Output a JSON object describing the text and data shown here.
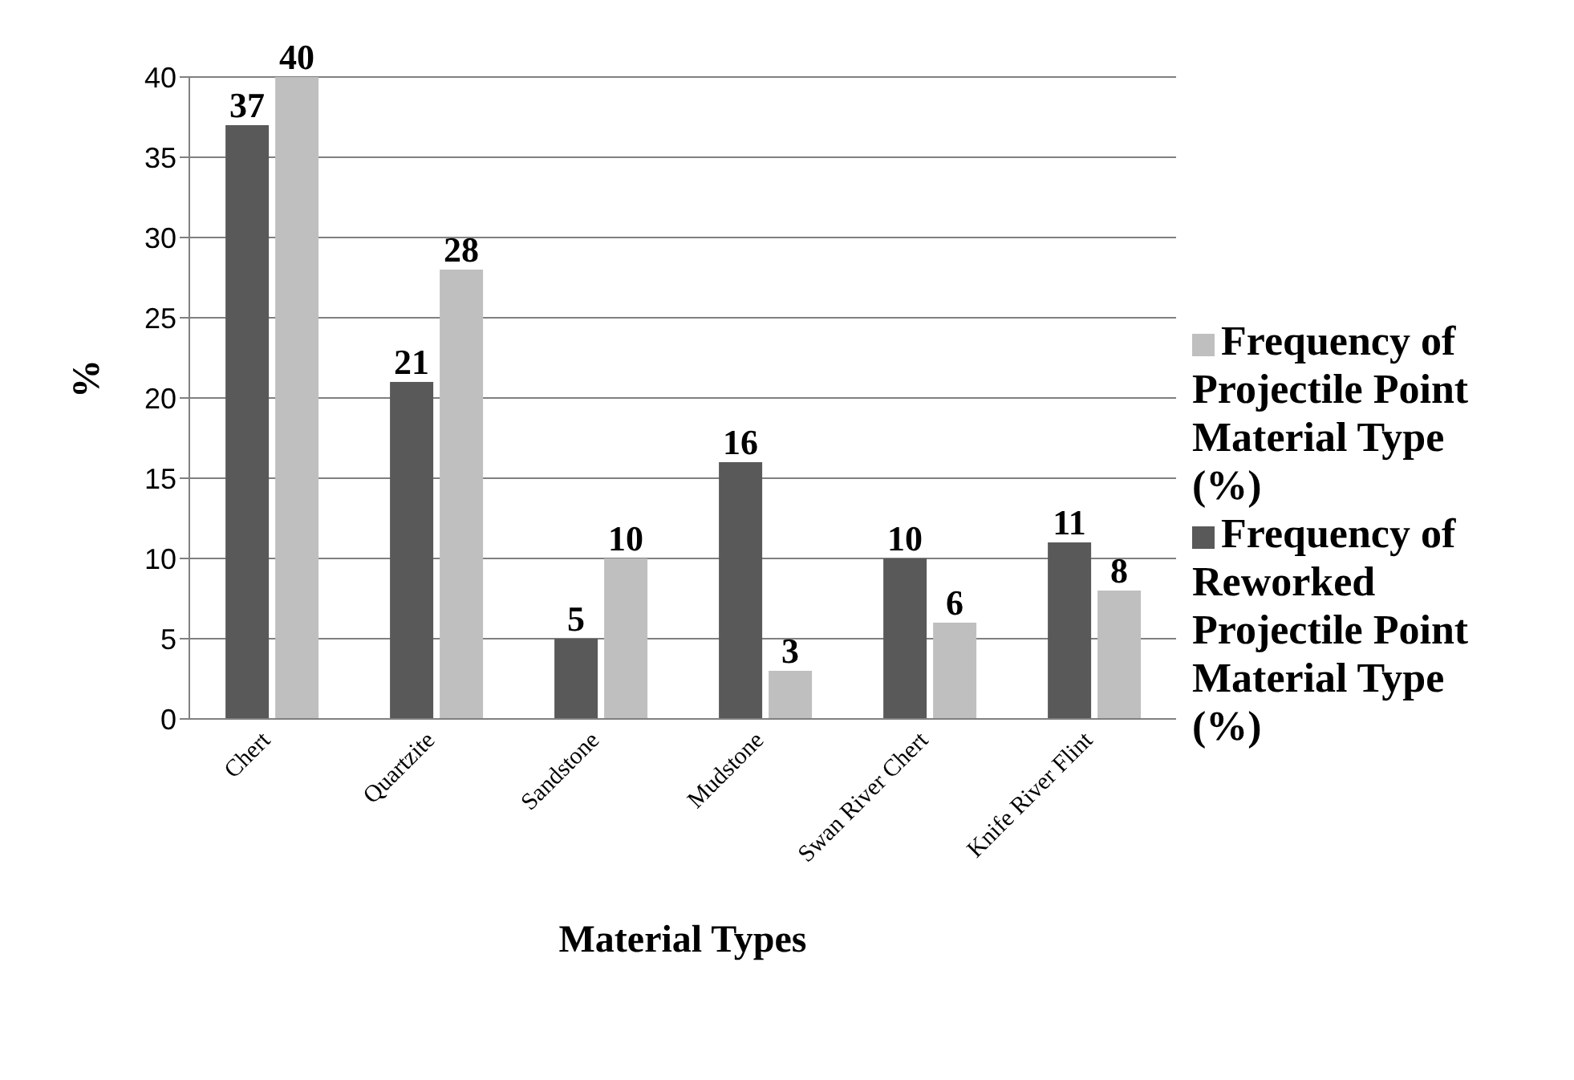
{
  "chart_data": {
    "type": "bar",
    "xlabel": "Material Types",
    "ylabel": "%",
    "categories": [
      "Chert",
      "Quartzite",
      "Sandstone",
      "Mudstone",
      "Swan River Chert",
      "Knife River Flint"
    ],
    "series": [
      {
        "name": "Frequency of Reworked Projectile Point Material Type (%)",
        "color": "#595959",
        "values": [
          37,
          21,
          5,
          16,
          10,
          11
        ]
      },
      {
        "name": "Frequency of Projectile Point Material Type (%)",
        "color": "#bfbfbf",
        "values": [
          40,
          28,
          10,
          3,
          6,
          8
        ]
      }
    ],
    "ylim": [
      0,
      40
    ],
    "yticks": [
      0,
      5,
      10,
      15,
      20,
      25,
      30,
      35,
      40
    ],
    "grid": "y",
    "legend": "right",
    "data_labels": true
  }
}
